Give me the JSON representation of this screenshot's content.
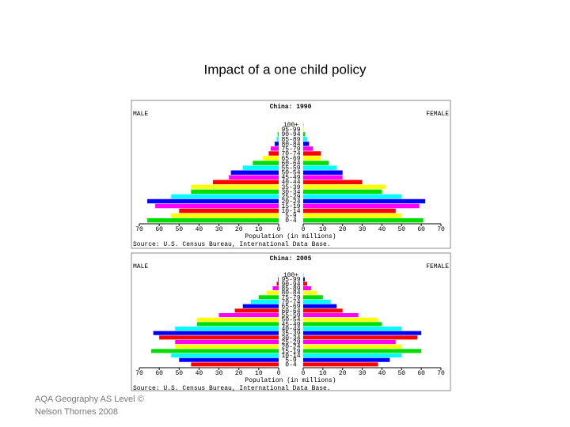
{
  "title": "Impact of a one child policy",
  "footer": [
    "AQA Geography AS Level ©",
    "Nelson Thornes 2008"
  ],
  "chart_data": [
    {
      "type": "pyramid",
      "title": "China: 1990",
      "categories": [
        "0-4",
        "5-9",
        "10-14",
        "15-19",
        "20-24",
        "25-29",
        "30-34",
        "35-39",
        "40-44",
        "45-49",
        "50-54",
        "55-59",
        "60-64",
        "65-69",
        "70-74",
        "75-79",
        "80-84",
        "85-89",
        "90-94",
        "95-99",
        "100+"
      ],
      "series": [
        {
          "name": "MALE",
          "values": [
            66,
            54,
            50,
            62,
            66,
            54,
            44,
            44,
            33,
            25,
            24,
            18,
            13,
            8,
            5,
            4,
            2,
            1,
            0.5,
            0.2,
            0
          ]
        },
        {
          "name": "FEMALE",
          "values": [
            61,
            50,
            47,
            59,
            62,
            50,
            40,
            42,
            30,
            20,
            20,
            17,
            13,
            9,
            9,
            5,
            3,
            2,
            1,
            0.3,
            0.1
          ]
        }
      ],
      "colors": [
        "#00dd00",
        "#ffff00",
        "#ff0000",
        "#ff00ff",
        "#0000ff",
        "#00ffff"
      ],
      "xlim": [
        0,
        70
      ],
      "xticks": [
        0,
        10,
        20,
        30,
        40,
        50,
        60,
        70
      ],
      "xlabel": "Population (in millions)",
      "source": "Source: U.S. Census Bureau, International Data Base."
    },
    {
      "type": "pyramid",
      "title": "China: 2005",
      "categories": [
        "0-4",
        "5-9",
        "10-14",
        "15-19",
        "20-24",
        "25-29",
        "30-34",
        "35-39",
        "40-44",
        "45-49",
        "50-54",
        "55-59",
        "60-64",
        "65-69",
        "70-74",
        "75-79",
        "80-84",
        "85-89",
        "90-94",
        "95-99",
        "100+"
      ],
      "series": [
        {
          "name": "MALE",
          "values": [
            44,
            50,
            54,
            64,
            52,
            52,
            60,
            63,
            52,
            41,
            41,
            30,
            22,
            18,
            14,
            10,
            6,
            3,
            1,
            0.3,
            0.1
          ]
        },
        {
          "name": "FEMALE",
          "values": [
            38,
            44,
            50,
            60,
            50,
            47,
            58,
            60,
            50,
            40,
            38,
            28,
            20,
            17,
            14,
            10,
            7,
            4,
            2,
            0.8,
            0.2
          ]
        }
      ],
      "colors": [
        "#ff0000",
        "#0000ff",
        "#00ffff",
        "#00dd00",
        "#ffff00",
        "#ff00ff"
      ],
      "xlim": [
        0,
        70
      ],
      "xticks": [
        0,
        10,
        20,
        30,
        40,
        50,
        60,
        70
      ],
      "xlabel": "Population (in millions)",
      "source": "Source: U.S. Census Bureau, International Data Base."
    }
  ]
}
